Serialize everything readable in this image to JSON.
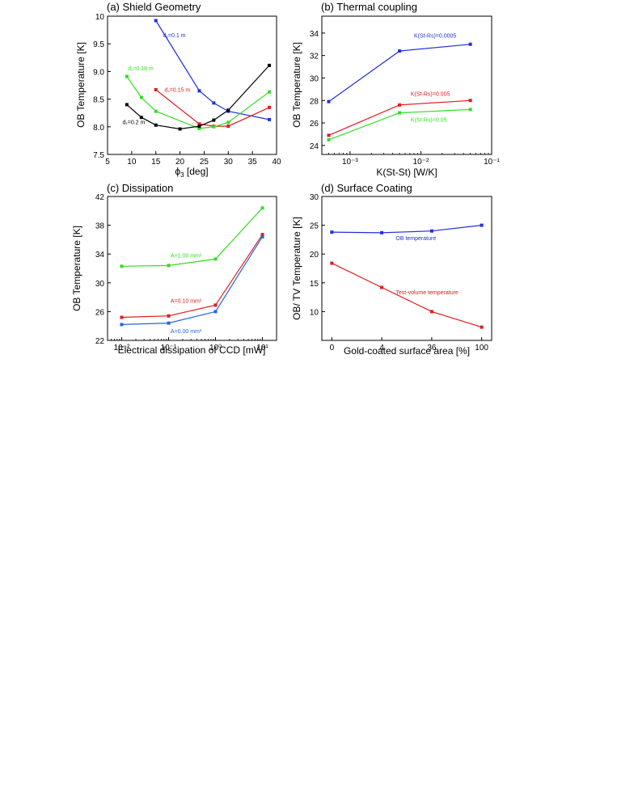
{
  "chart_data": [
    {
      "id": "a",
      "type": "line",
      "title": "(a) Shield Geometry",
      "xlabel": "ϕ",
      "xlabel_sub": "3",
      "xlabel_unit": " [deg]",
      "ylabel": "OB Temperature [K]",
      "xscale": "linear",
      "xlim": [
        5,
        40
      ],
      "ylim": [
        7.5,
        10
      ],
      "xticks": [
        5,
        10,
        15,
        20,
        25,
        30,
        35,
        40
      ],
      "yticks": [
        7.5,
        8.0,
        8.5,
        9.0,
        9.5,
        10
      ],
      "xtick_labels": [
        "5",
        "10",
        "15",
        "20",
        "25",
        "30",
        "35",
        "40"
      ],
      "ytick_labels": [
        "7.5",
        "8.0",
        "8.5",
        "9.0",
        "9.5",
        "10"
      ],
      "series": [
        {
          "name": "d₁=0.1 m",
          "color": "#1f2fe0",
          "x": [
            15,
            24,
            27,
            30,
            38.5
          ],
          "y": [
            9.92,
            8.65,
            8.43,
            8.28,
            8.13
          ],
          "label_at": [
            16.5,
            9.62
          ]
        },
        {
          "name": "d₁=0.15 m",
          "color": "#e31a1c",
          "x": [
            15,
            24,
            27,
            30,
            38.5
          ],
          "y": [
            8.67,
            8.05,
            8.01,
            8.01,
            8.35
          ],
          "label_at": [
            16.8,
            8.63
          ]
        },
        {
          "name": "d₁=0.18 m",
          "color": "#33dd22",
          "x": [
            9,
            12,
            15,
            24,
            27,
            30,
            38.5
          ],
          "y": [
            8.91,
            8.53,
            8.28,
            7.97,
            8.0,
            8.08,
            8.63
          ],
          "label_at": [
            9.2,
            9.02
          ]
        },
        {
          "name": "d₁=0.2 m",
          "color": "#000000",
          "x": [
            9,
            12,
            15,
            20,
            24,
            27,
            30,
            38.5
          ],
          "y": [
            8.4,
            8.17,
            8.03,
            7.96,
            8.01,
            8.12,
            8.3,
            9.11
          ],
          "label_at": [
            8.1,
            8.05
          ]
        }
      ]
    },
    {
      "id": "b",
      "type": "line",
      "title": "(b) Thermal coupling",
      "xlabel": "K(St-St) [W/K]",
      "ylabel": "OB Temperature [K]",
      "xscale": "log",
      "xlim": [
        0.0004,
        0.1
      ],
      "ylim": [
        23.2,
        35.5
      ],
      "xticks": [
        0.001,
        0.01,
        0.1
      ],
      "yticks": [
        24,
        26,
        28,
        30,
        32,
        34
      ],
      "xtick_labels": [
        "10⁻³",
        "10⁻²",
        "10⁻¹"
      ],
      "ytick_labels": [
        "24",
        "26",
        "28",
        "30",
        "32",
        "34"
      ],
      "series": [
        {
          "name": "K(St-Rs)=0.0005",
          "color": "#1f2fe0",
          "x": [
            0.0005,
            0.005,
            0.05
          ],
          "y": [
            27.9,
            32.4,
            33.0
          ],
          "label_at": [
            0.008,
            33.6
          ]
        },
        {
          "name": "K(St-Rs)=0.005",
          "color": "#e31a1c",
          "x": [
            0.0005,
            0.005,
            0.05
          ],
          "y": [
            24.9,
            27.6,
            28.0
          ],
          "label_at": [
            0.0072,
            28.4
          ]
        },
        {
          "name": "K(St-Rs)=0.05",
          "color": "#33dd22",
          "x": [
            0.0005,
            0.005,
            0.05
          ],
          "y": [
            24.5,
            26.9,
            27.2
          ],
          "label_at": [
            0.0072,
            26.1
          ]
        }
      ]
    },
    {
      "id": "c",
      "type": "line",
      "title": "(c) Dissipation",
      "xlabel": "Electrical dissipation of CCD [mW]",
      "ylabel": "OB Temperature [K]",
      "xscale": "log",
      "xlim": [
        0.005,
        20
      ],
      "ylim": [
        22,
        42
      ],
      "xticks": [
        0.01,
        0.1,
        1,
        10
      ],
      "yticks": [
        22,
        26,
        30,
        34,
        38,
        42
      ],
      "xtick_labels": [
        "10⁻²",
        "10⁻¹",
        "10⁰",
        "10¹"
      ],
      "ytick_labels": [
        "22",
        "26",
        "30",
        "34",
        "38",
        "42"
      ],
      "series": [
        {
          "name": "A=1.00 mm²",
          "color": "#33dd22",
          "x": [
            0.01,
            0.1,
            1,
            10
          ],
          "y": [
            32.3,
            32.4,
            33.3,
            40.4
          ],
          "label_at": [
            0.11,
            33.5
          ]
        },
        {
          "name": "A=0.10 mm²",
          "color": "#e31a1c",
          "x": [
            0.01,
            0.1,
            1,
            10
          ],
          "y": [
            25.2,
            25.4,
            26.9,
            36.7
          ],
          "label_at": [
            0.11,
            27.2
          ]
        },
        {
          "name": "A=0.00 mm²",
          "color": "#2266dd",
          "x": [
            0.01,
            0.1,
            1,
            10
          ],
          "y": [
            24.2,
            24.4,
            26.0,
            36.4
          ],
          "label_at": [
            0.11,
            23.0
          ]
        }
      ]
    },
    {
      "id": "d",
      "type": "line",
      "title": "(d) Surface Coating",
      "xlabel": "Gold-coated surface area [%]",
      "ylabel": "OB/ TV Temperature [K]",
      "xscale": "category",
      "xlim": [
        -0.2,
        3.2
      ],
      "ylim": [
        5,
        30
      ],
      "xticks": [
        0,
        1,
        2,
        3
      ],
      "yticks": [
        10,
        15,
        20,
        25,
        30
      ],
      "xtick_labels": [
        "0",
        "4",
        "36",
        "100"
      ],
      "ytick_labels": [
        "10",
        "15",
        "20",
        "25",
        "30"
      ],
      "series": [
        {
          "name": "OB temperature",
          "color": "#1f2fe0",
          "x": [
            0,
            1,
            2,
            3
          ],
          "y": [
            23.8,
            23.7,
            24.0,
            25.0
          ],
          "label_at": [
            1.28,
            22.4
          ]
        },
        {
          "name": "Test-volume temperature",
          "color": "#e31a1c",
          "x": [
            0,
            1,
            2,
            3
          ],
          "y": [
            18.4,
            14.2,
            10.0,
            7.3
          ],
          "label_at": [
            1.28,
            13.0
          ]
        }
      ]
    }
  ]
}
